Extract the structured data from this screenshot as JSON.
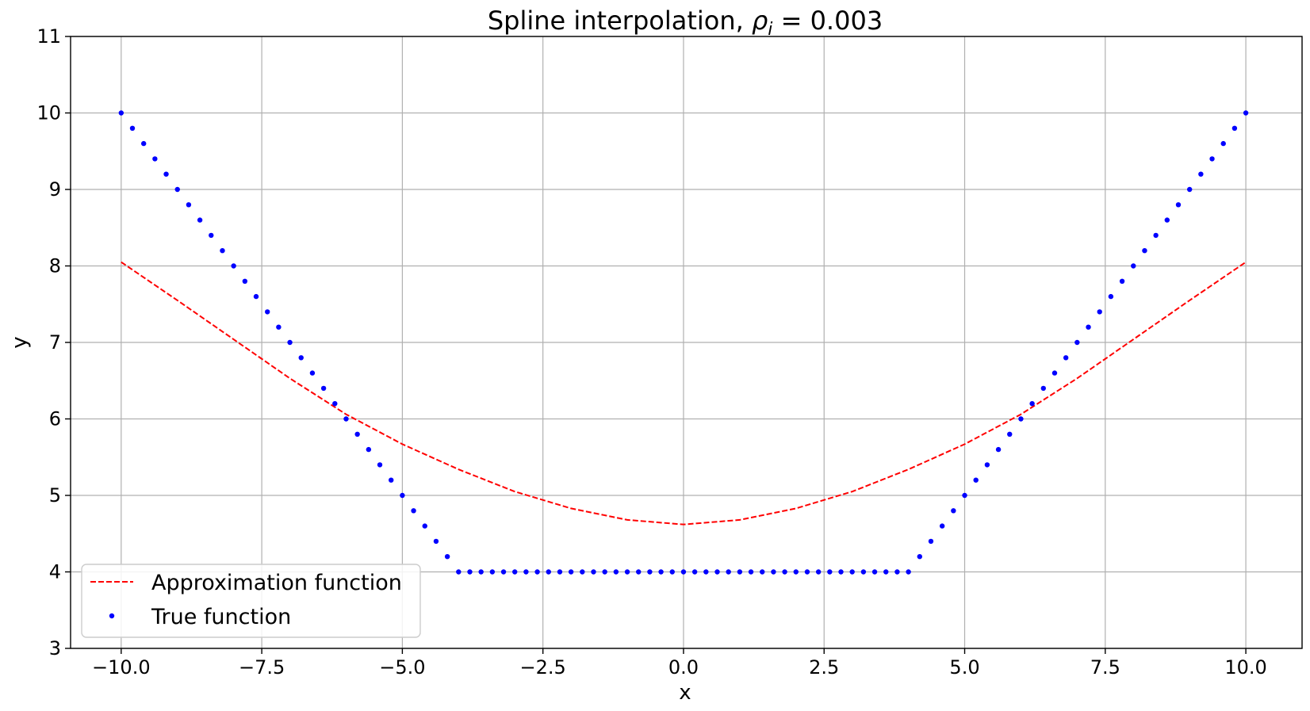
{
  "chart_data": {
    "type": "line",
    "title": "Spline interpolation, ",
    "title_math_symbol": "ρ",
    "title_math_subscript": "i",
    "title_math_rest": " = 0.003",
    "xlabel": "x",
    "ylabel": "y",
    "xlim": [
      -10.9,
      11.0
    ],
    "ylim": [
      3,
      11
    ],
    "grid": true,
    "legend_position": "lower-left",
    "xticks": [
      -10.0,
      -7.5,
      -5.0,
      -2.5,
      0.0,
      2.5,
      5.0,
      7.5,
      10.0
    ],
    "xtick_labels": [
      "−10.0",
      "−7.5",
      "−5.0",
      "−2.5",
      "0.0",
      "2.5",
      "5.0",
      "7.5",
      "10.0"
    ],
    "yticks": [
      3,
      4,
      5,
      6,
      7,
      8,
      9,
      10,
      11
    ],
    "ytick_labels": [
      "3",
      "4",
      "5",
      "6",
      "7",
      "8",
      "9",
      "10",
      "11"
    ],
    "series": [
      {
        "name": "Approximation function",
        "style": "dashed-line",
        "color": "#ff0000",
        "x": [
          -10,
          -9,
          -8,
          -7,
          -6,
          -5,
          -4,
          -3,
          -2,
          -1,
          0,
          1,
          2,
          3,
          4,
          5,
          6,
          7,
          8,
          9,
          10
        ],
        "y": [
          8.05,
          7.55,
          7.04,
          6.53,
          6.06,
          5.67,
          5.34,
          5.05,
          4.83,
          4.68,
          4.62,
          4.68,
          4.83,
          5.05,
          5.34,
          5.67,
          6.06,
          6.53,
          7.04,
          7.55,
          8.05
        ]
      },
      {
        "name": "True function",
        "style": "dots",
        "color": "#0000ff",
        "x_start": -10,
        "x_end": 10,
        "x_step": 0.2,
        "formula": "y = max(4, |x|)"
      }
    ]
  }
}
